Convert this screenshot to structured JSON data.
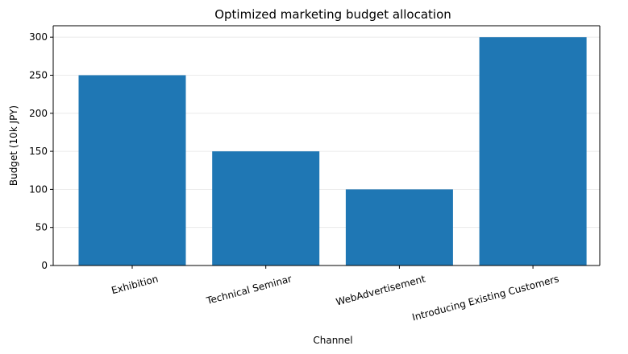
{
  "chart_data": {
    "type": "bar",
    "title": "Optimized marketing budget allocation",
    "xlabel": "Channel",
    "ylabel": "Budget (10k JPY)",
    "categories": [
      "Exhibition",
      "Technical Seminar",
      "WebAdvertisement",
      "Introducing Existing Customers"
    ],
    "values": [
      250,
      150,
      100,
      300
    ],
    "ylim": [
      0,
      315
    ],
    "yticks": [
      0,
      50,
      100,
      150,
      200,
      250,
      300
    ],
    "grid": "y-axis only",
    "bar_color": "#1f77b4",
    "x_tick_rotation_degrees": 15
  }
}
